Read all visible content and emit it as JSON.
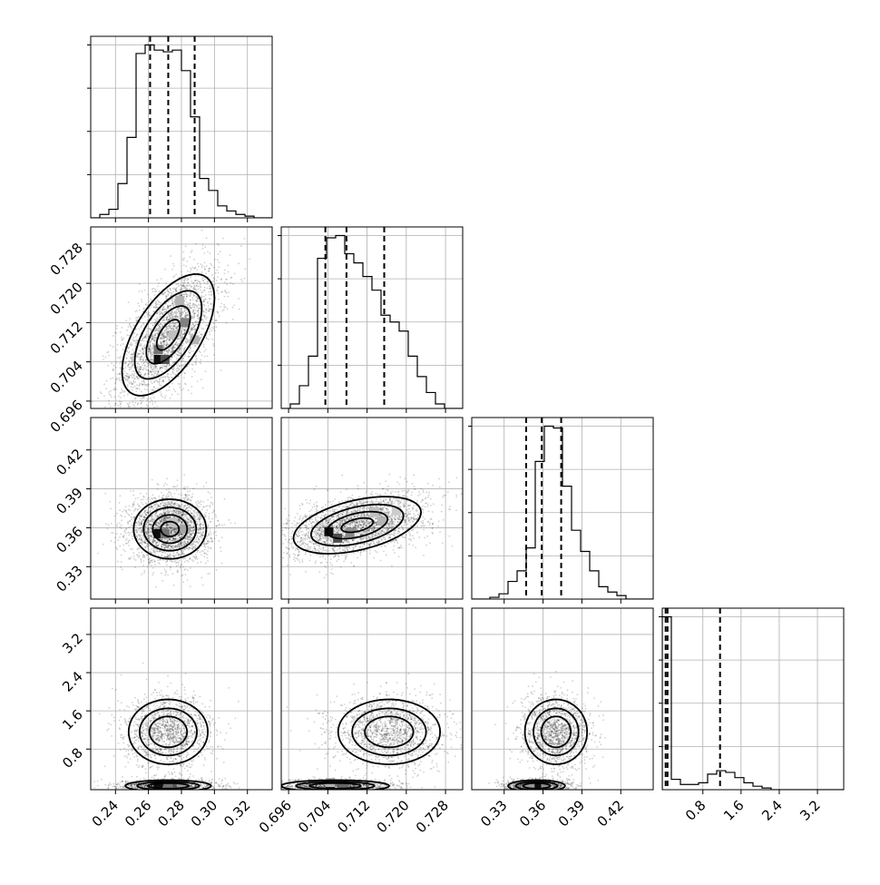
{
  "chart_data": {
    "type": "corner",
    "grid": true,
    "quantiles": [
      0.16,
      0.5,
      0.84
    ],
    "parameters": [
      {
        "range": [
          0.225,
          0.335
        ],
        "ticks": [
          "0.24",
          "0.26",
          "0.28",
          "0.30",
          "0.32"
        ],
        "tick_values": [
          0.24,
          0.26,
          0.28,
          0.3,
          0.32
        ],
        "quantile_values": [
          0.261,
          0.272,
          0.288
        ],
        "hist": {
          "edges_start": 0.225,
          "bin_width": 0.0055,
          "counts": [
            0,
            2,
            5,
            20,
            47,
            96,
            101,
            98,
            97,
            98,
            86,
            59,
            23,
            16,
            7,
            4,
            2,
            1,
            0,
            0
          ]
        }
      },
      {
        "range": [
          0.6945,
          0.7315
        ],
        "ticks": [
          "0.696",
          "0.704",
          "0.712",
          "0.720",
          "0.728"
        ],
        "tick_values": [
          0.696,
          0.704,
          0.712,
          0.72,
          0.728
        ],
        "quantile_values": [
          0.7035,
          0.7078,
          0.7155
        ],
        "hist": {
          "edges_start": 0.6945,
          "bin_width": 0.00185,
          "counts": [
            0,
            2,
            10,
            23,
            66,
            75,
            76,
            68,
            64,
            58,
            52,
            41,
            38,
            34,
            23,
            14,
            7,
            2,
            0,
            0
          ]
        }
      },
      {
        "range": [
          0.305,
          0.445
        ],
        "ticks": [
          "0.33",
          "0.36",
          "0.39",
          "0.42"
        ],
        "tick_values": [
          0.33,
          0.36,
          0.39,
          0.42
        ],
        "quantile_values": [
          0.347,
          0.359,
          0.374
        ],
        "hist": {
          "edges_start": 0.305,
          "bin_width": 0.007,
          "counts": [
            0,
            0,
            1,
            3,
            10,
            16,
            29,
            78,
            98,
            97,
            64,
            39,
            27,
            16,
            7,
            4,
            2,
            0,
            0,
            0
          ]
        }
      },
      {
        "range": [
          -0.05,
          3.75
        ],
        "ticks": [
          "0.8",
          "1.6",
          "2.4",
          "3.2"
        ],
        "tick_values": [
          0.8,
          1.6,
          2.4,
          3.2
        ],
        "quantile_values": [
          0.02,
          0.06,
          1.16
        ],
        "hist": {
          "edges_start": -0.05,
          "bin_width": 0.19,
          "counts": [
            100,
            6,
            3,
            3,
            4,
            9,
            11,
            10,
            7,
            4,
            2,
            1,
            0,
            0,
            0,
            0,
            0,
            0,
            0,
            0
          ]
        }
      }
    ],
    "pairs": [
      {
        "x": 0,
        "y": 1,
        "blobs": [
          {
            "cx": 0.272,
            "cy": 0.7095,
            "sx": 0.014,
            "sy": 0.0062,
            "rho": 0.6
          }
        ],
        "cells": [
          [
            0.266,
            0.7045,
            0.95
          ],
          [
            0.27,
            0.7045,
            0.7
          ],
          [
            0.266,
            0.7065,
            0.55
          ],
          [
            0.282,
            0.712,
            0.5
          ],
          [
            0.279,
            0.7165,
            0.3
          ],
          [
            0.288,
            0.7085,
            0.3
          ],
          [
            0.275,
            0.7095,
            0.25
          ]
        ]
      },
      {
        "x": 0,
        "y": 2,
        "blobs": [
          {
            "cx": 0.273,
            "cy": 0.359,
            "sx": 0.011,
            "sy": 0.0115,
            "rho": 0.0
          }
        ],
        "cells": [
          [
            0.266,
            0.3555,
            0.95
          ],
          [
            0.27,
            0.3555,
            0.55
          ],
          [
            0.282,
            0.359,
            0.35
          ],
          [
            0.275,
            0.364,
            0.25
          ]
        ]
      },
      {
        "x": 1,
        "y": 2,
        "blobs": [
          {
            "cx": 0.71,
            "cy": 0.362,
            "sx": 0.0065,
            "sy": 0.011,
            "rho": 0.45
          }
        ],
        "cells": [
          [
            0.7042,
            0.357,
            0.95
          ],
          [
            0.706,
            0.352,
            0.7
          ],
          [
            0.7085,
            0.356,
            0.45
          ],
          [
            0.715,
            0.365,
            0.3
          ],
          [
            0.7135,
            0.372,
            0.25
          ],
          [
            0.718,
            0.373,
            0.2
          ]
        ]
      },
      {
        "x": 0,
        "y": 3,
        "blobs": [
          {
            "cx": 0.272,
            "cy": 1.16,
            "sx": 0.012,
            "sy": 0.34,
            "rho": 0.0
          },
          {
            "cx": 0.272,
            "cy": 0.03,
            "sx": 0.013,
            "sy": 0.06,
            "rho": 0.0
          }
        ],
        "cells": [
          [
            0.266,
            0.04,
            0.95
          ],
          [
            0.272,
            0.04,
            0.55
          ],
          [
            0.28,
            0.04,
            0.4
          ]
        ]
      },
      {
        "x": 1,
        "y": 3,
        "blobs": [
          {
            "cx": 0.7165,
            "cy": 1.16,
            "sx": 0.0052,
            "sy": 0.34,
            "rho": 0.0
          },
          {
            "cx": 0.7055,
            "cy": 0.03,
            "sx": 0.0055,
            "sy": 0.06,
            "rho": 0.0
          }
        ],
        "cells": [
          [
            0.7045,
            0.04,
            0.95
          ],
          [
            0.7072,
            0.04,
            0.6
          ],
          [
            0.7045,
            0.1,
            0.3
          ]
        ]
      },
      {
        "x": 2,
        "y": 3,
        "blobs": [
          {
            "cx": 0.37,
            "cy": 1.16,
            "sx": 0.012,
            "sy": 0.34,
            "rho": 0.0
          },
          {
            "cx": 0.355,
            "cy": 0.03,
            "sx": 0.011,
            "sy": 0.06,
            "rho": 0.0
          }
        ],
        "cells": [
          [
            0.355,
            0.04,
            0.95
          ],
          [
            0.362,
            0.04,
            0.45
          ],
          [
            0.35,
            0.04,
            0.4
          ]
        ]
      }
    ]
  }
}
